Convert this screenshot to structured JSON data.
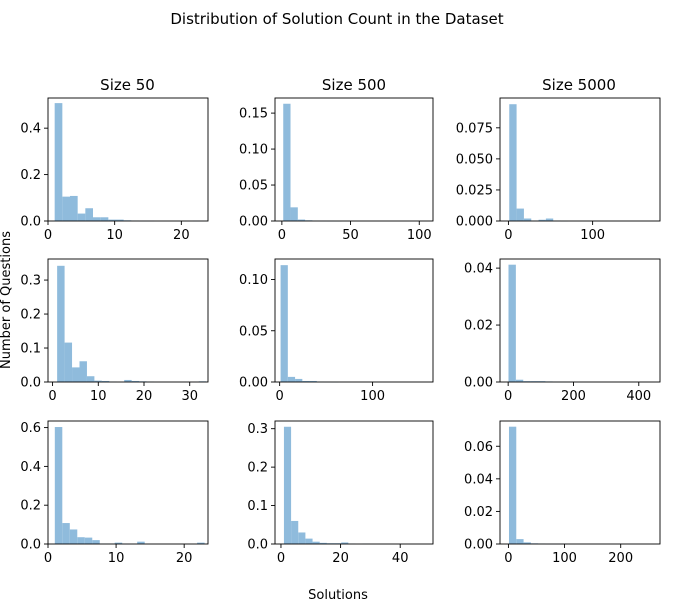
{
  "chart_data": {
    "type": "bar",
    "title": "Distribution of Solution Count in the Dataset",
    "xlabel": "Solutions",
    "ylabel": "Number of Questions",
    "bar_color": "#8fbbdc",
    "column_titles": [
      "Size 50",
      "Size 500",
      "Size 5000"
    ],
    "subplots": [
      {
        "row": 0,
        "col": 0,
        "xlim": [
          0,
          24
        ],
        "ylim": [
          0,
          0.53
        ],
        "xticks": [
          0,
          10,
          20
        ],
        "yticks": [
          0.0,
          0.2,
          0.4
        ],
        "ytick_labels": [
          "0.0",
          "0.2",
          "0.4"
        ],
        "bin_width": 1.15,
        "bin_start": 1,
        "values": [
          0.508,
          0.105,
          0.108,
          0.032,
          0.055,
          0.016,
          0.016,
          0.006,
          0.006,
          0.003,
          0.002,
          0.001,
          0.001,
          0.0,
          0.0,
          0.0,
          0.0,
          0.0,
          0.001,
          0.0
        ]
      },
      {
        "row": 0,
        "col": 1,
        "xlim": [
          -5,
          110
        ],
        "ylim": [
          0,
          0.171
        ],
        "xticks": [
          0,
          50,
          100
        ],
        "yticks": [
          0.0,
          0.05,
          0.1,
          0.15
        ],
        "ytick_labels": [
          "0.00",
          "0.05",
          "0.10",
          "0.15"
        ],
        "bin_width": 5.3,
        "bin_start": 1,
        "values": [
          0.163,
          0.019,
          0.002,
          0.001,
          0.0005,
          0.0003,
          0.0002,
          0.0001,
          0.0,
          0.0,
          0.0,
          0.0,
          0.0,
          0.0,
          0.0,
          0.0,
          0.0,
          0.0,
          0.0,
          0.0
        ]
      },
      {
        "row": 0,
        "col": 2,
        "xlim": [
          -10,
          180
        ],
        "ylim": [
          0,
          0.099
        ],
        "xticks": [
          0,
          100
        ],
        "yticks": [
          0.0,
          0.025,
          0.05,
          0.075
        ],
        "ytick_labels": [
          "0.000",
          "0.025",
          "0.050",
          "0.075"
        ],
        "bin_width": 8.7,
        "bin_start": 1,
        "values": [
          0.094,
          0.01,
          0.002,
          0.0003,
          0.001,
          0.002,
          0.0003,
          0.0001,
          0.0,
          0.0,
          0.0,
          0.0,
          0.0,
          0.0,
          0.0,
          0.0,
          0.0,
          0.0,
          0.0,
          0.0
        ]
      },
      {
        "row": 1,
        "col": 0,
        "xlim": [
          -1,
          34
        ],
        "ylim": [
          0,
          0.362
        ],
        "xticks": [
          0,
          10,
          20,
          30
        ],
        "ytick_labels": [
          "0.0",
          "0.1",
          "0.2",
          "0.3"
        ],
        "yticks": [
          0.0,
          0.1,
          0.2,
          0.3
        ],
        "bin_width": 1.63,
        "bin_start": 1,
        "values": [
          0.342,
          0.116,
          0.043,
          0.061,
          0.017,
          0.004,
          0.003,
          0.001,
          0.0,
          0.006,
          0.003,
          0.002,
          0.001,
          0.0,
          0.0,
          0.0,
          0.0,
          0.0,
          0.0,
          0.002
        ]
      },
      {
        "row": 1,
        "col": 1,
        "xlim": [
          -5,
          165
        ],
        "ylim": [
          0,
          0.12
        ],
        "xticks": [
          0,
          100
        ],
        "yticks": [
          0.0,
          0.05,
          0.1
        ],
        "ytick_labels": [
          "0.00",
          "0.05",
          "0.10"
        ],
        "bin_width": 7.8,
        "bin_start": 1,
        "values": [
          0.114,
          0.005,
          0.003,
          0.001,
          0.001,
          0.0003,
          0.0002,
          0.0001,
          0.0,
          0.0,
          0.0,
          0.0,
          0.0,
          0.0,
          0.0,
          0.0,
          0.0,
          0.0,
          0.0,
          0.0
        ]
      },
      {
        "row": 1,
        "col": 2,
        "xlim": [
          -25,
          465
        ],
        "ylim": [
          0,
          0.0432
        ],
        "xticks": [
          0,
          200,
          400
        ],
        "yticks": [
          0.0,
          0.02,
          0.04
        ],
        "ytick_labels": [
          "0.00",
          "0.02",
          "0.04"
        ],
        "bin_width": 22.6,
        "bin_start": 1,
        "values": [
          0.0412,
          0.0008,
          0.0003,
          0.0003,
          0.0003,
          0.0002,
          0.0001,
          0.0001,
          0.0001,
          0.0,
          0.0,
          0.0,
          0.0,
          0.0,
          0.0,
          0.0,
          0.0,
          0.0,
          0.0,
          0.0
        ]
      },
      {
        "row": 2,
        "col": 0,
        "xlim": [
          0,
          23.5
        ],
        "ylim": [
          0,
          0.634
        ],
        "xticks": [
          0,
          10,
          20
        ],
        "yticks": [
          0.0,
          0.2,
          0.4,
          0.6
        ],
        "ytick_labels": [
          "0.0",
          "0.2",
          "0.4",
          "0.6"
        ],
        "bin_width": 1.1,
        "bin_start": 1,
        "values": [
          0.603,
          0.108,
          0.075,
          0.035,
          0.033,
          0.02,
          0.002,
          0.002,
          0.007,
          0.001,
          0.0,
          0.012,
          0.0,
          0.0,
          0.0,
          0.0,
          0.0,
          0.0,
          0.0,
          0.007
        ]
      },
      {
        "row": 2,
        "col": 1,
        "xlim": [
          -2,
          51
        ],
        "ylim": [
          0,
          0.32
        ],
        "xticks": [
          0,
          20,
          40
        ],
        "yticks": [
          0.0,
          0.1,
          0.2,
          0.3
        ],
        "ytick_labels": [
          "0.0",
          "0.1",
          "0.2",
          "0.3"
        ],
        "bin_width": 2.4,
        "bin_start": 1,
        "values": [
          0.305,
          0.06,
          0.03,
          0.014,
          0.006,
          0.003,
          0.002,
          0.002,
          0.004,
          0.001,
          0.0,
          0.001,
          0.0,
          0.0,
          0.0,
          0.0,
          0.0,
          0.0,
          0.0,
          0.0
        ]
      },
      {
        "row": 2,
        "col": 2,
        "xlim": [
          -15,
          270
        ],
        "ylim": [
          0,
          0.0755
        ],
        "xticks": [
          0,
          100,
          200
        ],
        "yticks": [
          0.0,
          0.02,
          0.04,
          0.06
        ],
        "ytick_labels": [
          "0.00",
          "0.02",
          "0.04",
          "0.06"
        ],
        "bin_width": 13,
        "bin_start": 1,
        "values": [
          0.072,
          0.003,
          0.001,
          0.0004,
          0.0003,
          0.0001,
          0.0001,
          0.0001,
          0.0,
          0.0,
          0.0,
          0.0,
          0.0,
          0.0,
          0.0,
          0.0,
          0.0,
          0.0,
          0.0,
          0.0
        ]
      }
    ]
  }
}
